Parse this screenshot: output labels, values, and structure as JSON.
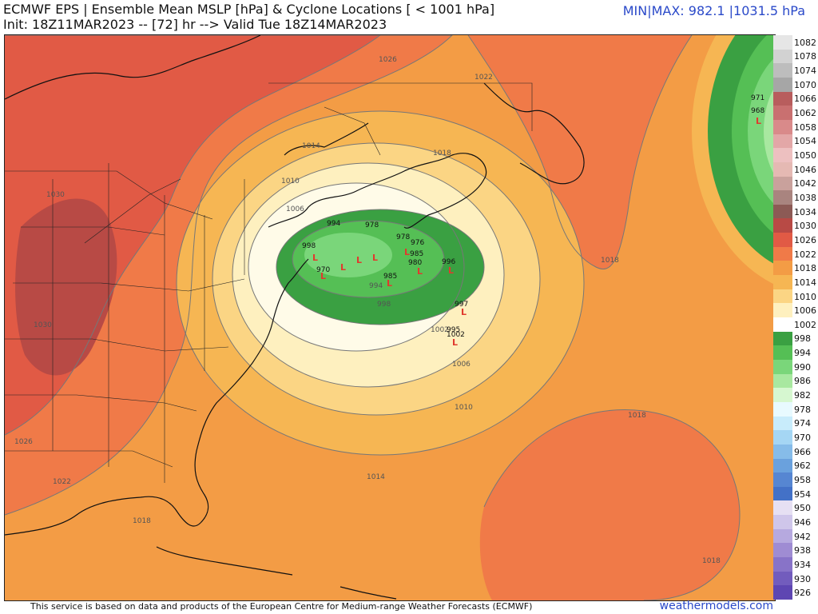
{
  "header": {
    "title_line1": "ECMWF EPS | Ensemble Mean MSLP [hPa] & Cyclone Locations [ < 1001 hPa]",
    "title_line2": "Init: 18Z11MAR2023 -- [72] hr --> Valid Tue 18Z14MAR2023",
    "minmax": "MIN|MAX: 982.1 |1031.5 hPa"
  },
  "footer": {
    "credit": "This service is based on data and products of the European Centre for Medium-range Weather Forecasts (ECMWF)",
    "brand": "weathermodels.com"
  },
  "colorbar": [
    {
      "value": "1082",
      "color": "#e6e6e6"
    },
    {
      "value": "1078",
      "color": "#d2d2d2"
    },
    {
      "value": "1074",
      "color": "#bdbdbd"
    },
    {
      "value": "1070",
      "color": "#a6a6a6"
    },
    {
      "value": "1066",
      "color": "#b85d5d"
    },
    {
      "value": "1062",
      "color": "#c97070"
    },
    {
      "value": "1058",
      "color": "#d98a8a"
    },
    {
      "value": "1054",
      "color": "#e3a7a7"
    },
    {
      "value": "1050",
      "color": "#edc0c0"
    },
    {
      "value": "1046",
      "color": "#e5b9b3"
    },
    {
      "value": "1042",
      "color": "#c9a19c"
    },
    {
      "value": "1038",
      "color": "#a9847f"
    },
    {
      "value": "1034",
      "color": "#8c5a55"
    },
    {
      "value": "1030",
      "color": "#b84a45"
    },
    {
      "value": "1026",
      "color": "#e15a45"
    },
    {
      "value": "1022",
      "color": "#f07a48"
    },
    {
      "value": "1018",
      "color": "#f39c45"
    },
    {
      "value": "1014",
      "color": "#f6b653"
    },
    {
      "value": "1010",
      "color": "#fbd584"
    },
    {
      "value": "1006",
      "color": "#fef0bf"
    },
    {
      "value": "1002",
      "color": "#ffffff"
    },
    {
      "value": "998",
      "color": "#3aa042"
    },
    {
      "value": "994",
      "color": "#55bf55"
    },
    {
      "value": "990",
      "color": "#7ad67a"
    },
    {
      "value": "986",
      "color": "#a8e8a0"
    },
    {
      "value": "982",
      "color": "#d6f7d0"
    },
    {
      "value": "978",
      "color": "#e8faff"
    },
    {
      "value": "974",
      "color": "#c8ecfb"
    },
    {
      "value": "970",
      "color": "#a5d6f4"
    },
    {
      "value": "966",
      "color": "#86bce9"
    },
    {
      "value": "962",
      "color": "#6aa1dd"
    },
    {
      "value": "958",
      "color": "#5686d2"
    },
    {
      "value": "954",
      "color": "#4371c7"
    },
    {
      "value": "950",
      "color": "#e6e0f3"
    },
    {
      "value": "946",
      "color": "#cfc6ea"
    },
    {
      "value": "942",
      "color": "#b6a9df"
    },
    {
      "value": "938",
      "color": "#9f8cd3"
    },
    {
      "value": "934",
      "color": "#8873c8"
    },
    {
      "value": "930",
      "color": "#725cbd"
    },
    {
      "value": "926",
      "color": "#5e46b2"
    }
  ],
  "isobar_labels": [
    "1026",
    "1022",
    "1018",
    "1014",
    "1010",
    "1006",
    "1030",
    "1030",
    "1026",
    "1022",
    "1018",
    "1014",
    "1010",
    "1006",
    "1002",
    "998",
    "994",
    "1018",
    "1018",
    "1018"
  ],
  "cyclones": [
    {
      "label": "971"
    },
    {
      "label": "968"
    },
    {
      "label": "994"
    },
    {
      "label": "978"
    },
    {
      "label": "978"
    },
    {
      "label": "976"
    },
    {
      "label": "980"
    },
    {
      "label": "985"
    },
    {
      "label": "985"
    },
    {
      "label": "996"
    },
    {
      "label": "997"
    },
    {
      "label": "995"
    },
    {
      "label": "1002"
    },
    {
      "label": "970"
    },
    {
      "label": "998"
    }
  ]
}
